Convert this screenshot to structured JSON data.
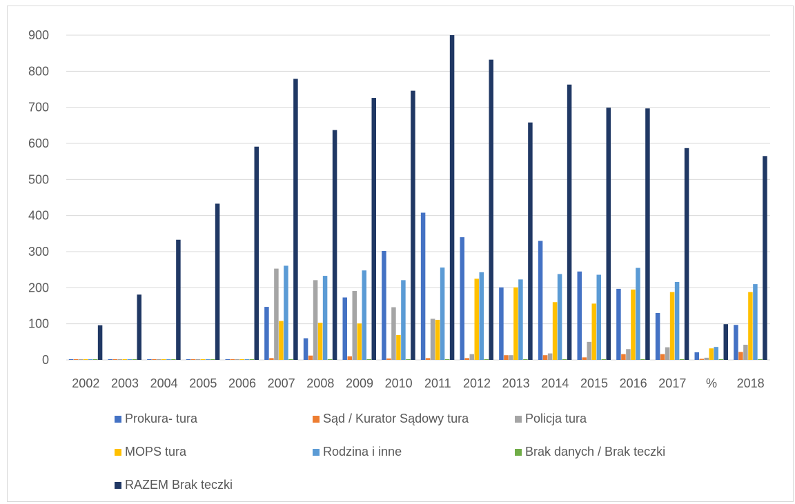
{
  "chart_data": {
    "type": "bar",
    "categories": [
      "2002",
      "2003",
      "2004",
      "2005",
      "2006",
      "2007",
      "2008",
      "2009",
      "2010",
      "2011",
      "2012",
      "2013",
      "2014",
      "2015",
      "2016",
      "2017",
      "%",
      "2018"
    ],
    "ylim": [
      0,
      900
    ],
    "yticks": [
      0,
      100,
      200,
      300,
      400,
      500,
      600,
      700,
      800,
      900
    ],
    "grid": true,
    "legend_position": "bottom",
    "series": [
      {
        "name": "Prokura- tura",
        "color": "#4472C4",
        "values": [
          0,
          0,
          0,
          0,
          0,
          147,
          60,
          173,
          302,
          408,
          340,
          201,
          330,
          245,
          197,
          130,
          21,
          97
        ]
      },
      {
        "name": "Sąd / Kurator Sądowy tura",
        "color": "#ED7D31",
        "values": [
          0,
          0,
          0,
          0,
          0,
          5,
          12,
          10,
          4,
          5,
          5,
          13,
          13,
          7,
          16,
          16,
          3,
          22
        ]
      },
      {
        "name": "Policja tura",
        "color": "#A5A5A5",
        "values": [
          0,
          0,
          0,
          0,
          0,
          253,
          221,
          191,
          146,
          114,
          16,
          13,
          18,
          50,
          30,
          35,
          6,
          42
        ]
      },
      {
        "name": "MOPS tura",
        "color": "#FFC000",
        "values": [
          0,
          0,
          0,
          0,
          0,
          108,
          103,
          101,
          69,
          111,
          225,
          201,
          160,
          156,
          195,
          188,
          32,
          188
        ]
      },
      {
        "name": "Rodzina i inne",
        "color": "#5B9BD5",
        "values": [
          0,
          0,
          0,
          0,
          0,
          261,
          233,
          248,
          221,
          256,
          243,
          223,
          238,
          236,
          255,
          216,
          36,
          210
        ]
      },
      {
        "name": "Brak danych / Brak teczki",
        "color": "#70AD47",
        "values": [
          0,
          0,
          0,
          0,
          0,
          0,
          0,
          0,
          0,
          0,
          0,
          0,
          0,
          0,
          0,
          0,
          0,
          0
        ]
      },
      {
        "name": "RAZEM Brak teczki",
        "color": "#203864",
        "values": [
          96,
          181,
          333,
          433,
          591,
          779,
          637,
          726,
          746,
          900,
          832,
          658,
          763,
          699,
          697,
          587,
          99,
          565
        ]
      }
    ]
  }
}
